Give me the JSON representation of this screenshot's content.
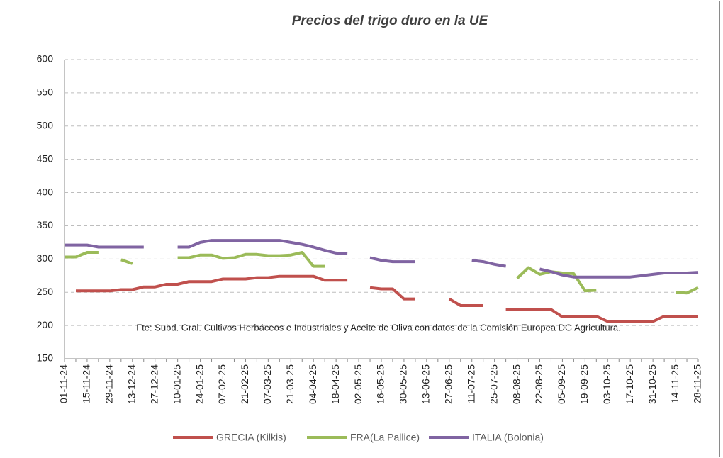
{
  "chart_data": {
    "type": "line",
    "title": "Precios del trigo duro en la UE",
    "annotation": "Fte: Subd. Gral. Cultivos Herbáceos e Industriales y Aceite de Oliva con datos de la Comisión Europea DG Agricultura.",
    "categories": [
      "01-11-24",
      null,
      "15-11-24",
      null,
      "29-11-24",
      null,
      "13-12-24",
      null,
      "27-12-24",
      null,
      "10-01-25",
      null,
      "24-01-25",
      null,
      "07-02-25",
      null,
      "21-02-25",
      null,
      "07-03-25",
      null,
      "21-03-25",
      null,
      "04-04-25",
      null,
      "18-04-25",
      null,
      "02-05-25",
      null,
      "16-05-25",
      null,
      "30-05-25",
      null,
      "13-06-25",
      null,
      "27-06-25",
      null,
      "11-07-25",
      null,
      "25-07-25",
      null,
      "08-08-25",
      null,
      "22-08-25",
      null,
      "05-09-25",
      null,
      "19-09-25",
      null,
      "03-10-25",
      null,
      "17-10-25",
      null,
      "31-10-25",
      null,
      "14-11-25",
      null,
      "28-11-25"
    ],
    "series": [
      {
        "name": "GRECIA (Kilkis)",
        "color": "#c0504d",
        "values": [
          null,
          252,
          252,
          252,
          252,
          254,
          254,
          258,
          258,
          262,
          262,
          266,
          266,
          266,
          270,
          270,
          270,
          272,
          272,
          274,
          274,
          274,
          274,
          268,
          268,
          268,
          null,
          257,
          255,
          255,
          240,
          240,
          null,
          null,
          240,
          230,
          230,
          230,
          null,
          224,
          224,
          224,
          224,
          224,
          213,
          214,
          214,
          214,
          206,
          206,
          206,
          206,
          206,
          214,
          214,
          214,
          214
        ]
      },
      {
        "name": "FRA(La Pallice)",
        "color": "#9bbb59",
        "values": [
          303,
          303,
          310,
          310,
          null,
          299,
          293,
          null,
          null,
          null,
          302,
          302,
          306,
          306,
          301,
          302,
          307,
          307,
          305,
          305,
          306,
          310,
          289,
          289,
          null,
          null,
          null,
          null,
          null,
          null,
          null,
          null,
          null,
          null,
          null,
          null,
          null,
          null,
          null,
          null,
          271,
          287,
          277,
          281,
          279,
          278,
          252,
          253,
          null,
          null,
          null,
          null,
          null,
          null,
          250,
          249,
          257
        ]
      },
      {
        "name": "ITALIA (Bolonia)",
        "color": "#8064a2",
        "values": [
          321,
          321,
          321,
          318,
          318,
          318,
          318,
          318,
          null,
          null,
          318,
          318,
          325,
          328,
          328,
          328,
          328,
          328,
          328,
          328,
          325,
          322,
          318,
          313,
          309,
          308,
          null,
          302,
          298,
          296,
          296,
          296,
          null,
          null,
          null,
          null,
          298,
          296,
          292,
          289,
          null,
          null,
          285,
          281,
          276,
          273,
          273,
          273,
          273,
          273,
          273,
          275,
          277,
          279,
          279,
          279,
          280
        ]
      }
    ],
    "ylim": [
      150,
      600
    ],
    "yticks": [
      150,
      200,
      250,
      300,
      350,
      400,
      450,
      500,
      550,
      600
    ],
    "grid": true
  }
}
